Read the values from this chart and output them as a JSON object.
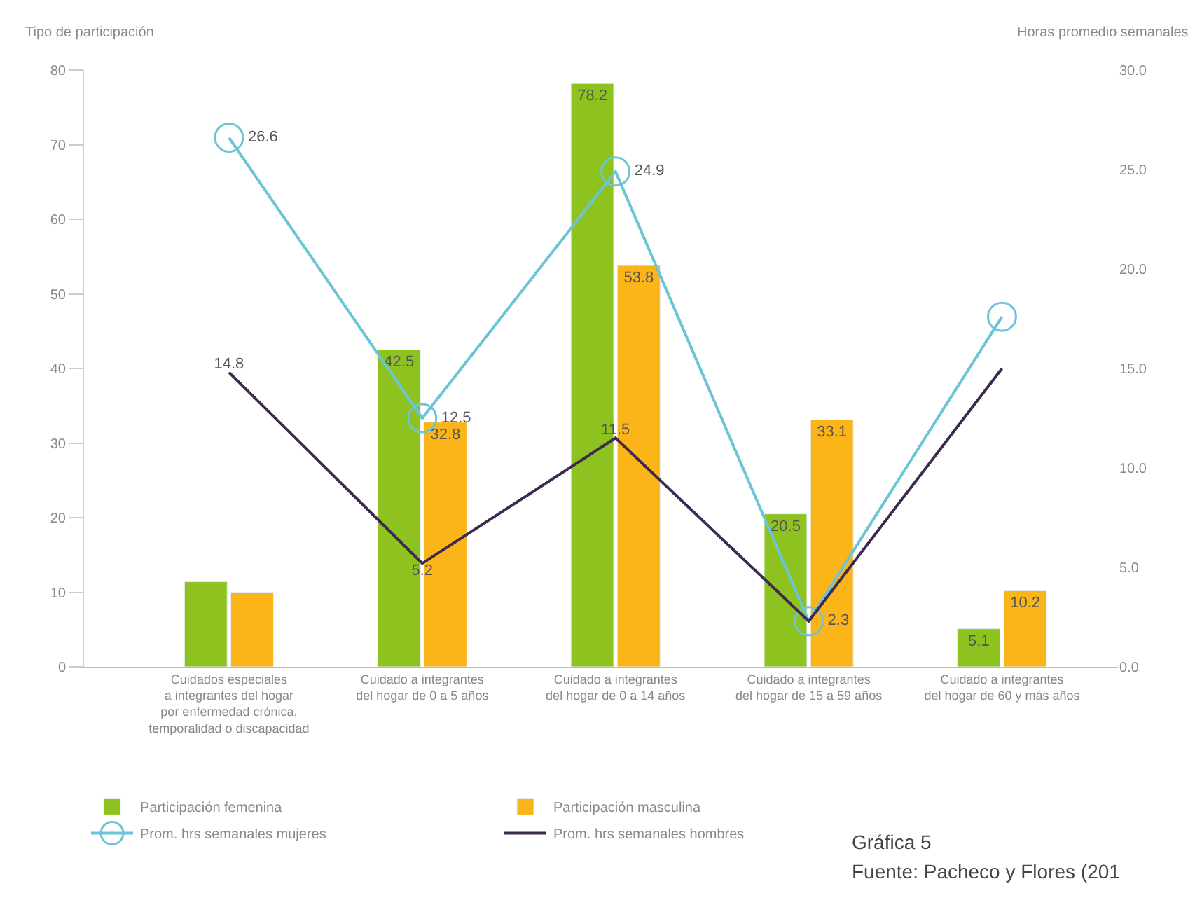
{
  "chart_data": {
    "type": "bar",
    "ylabel": "Tipo de participación",
    "y2label": "Horas promedio semanales",
    "categories": [
      "Cuidados especiales\na integrantes del hogar\npor enfermedad crónica,\ntemporalidad o discapacidad",
      "Cuidado a integrantes\ndel hogar de 0 a 5 años",
      "Cuidado a integrantes\ndel hogar de 0 a 14 años",
      "Cuidado a integrantes\ndel hogar de 15 a 59 años",
      "Cuidado a integrantes\ndel hogar de 60 y más años"
    ],
    "series": [
      {
        "name": "Participación femenina",
        "color": "#8dc21f",
        "values": [
          11.4,
          42.5,
          78.2,
          20.5,
          5.1
        ],
        "value_labels": [
          null,
          "42.5",
          "78.2",
          "20.5",
          "5.1"
        ]
      },
      {
        "name": "Participación masculina",
        "color": "#fbb518",
        "values": [
          10.0,
          32.8,
          53.8,
          33.1,
          10.2
        ],
        "value_labels": [
          null,
          "32.8",
          "53.8",
          "33.1",
          "10.2"
        ]
      },
      {
        "name": "Prom. hrs semanales mujeres",
        "type": "line",
        "axis": "y2",
        "marker": "circle",
        "color": "#6cc5d4",
        "values": [
          26.6,
          12.5,
          24.9,
          2.3,
          17.6
        ],
        "value_labels": [
          "26.6",
          "12.5",
          "24.9",
          "2.3",
          null
        ]
      },
      {
        "name": "Prom. hrs semanales hombres",
        "type": "line",
        "axis": "y2",
        "marker": "none",
        "color": "#3d2b4f",
        "values": [
          14.8,
          5.2,
          11.5,
          2.3,
          15.0
        ],
        "value_labels": [
          "14.8",
          "5.2",
          "11.5",
          null,
          null
        ]
      }
    ],
    "ylim": [
      0,
      80
    ],
    "yticks": [
      0,
      10,
      20,
      30,
      40,
      50,
      60,
      70,
      80
    ],
    "y2lim": [
      0,
      30
    ],
    "y2ticks": [
      {
        "value": 0,
        "label": "0.0"
      },
      {
        "value": 5,
        "label": "5.0"
      },
      {
        "value": 10,
        "label": "10.0"
      },
      {
        "value": 15,
        "label": "15.0"
      },
      {
        "value": 20,
        "label": "20.0"
      },
      {
        "value": 25,
        "label": "25.0"
      },
      {
        "value": 30,
        "label": "30.0"
      }
    ],
    "legend": "bottom",
    "annotations": [
      "Gráfica 5",
      "Fuente: Pacheco y Flores (201"
    ]
  }
}
